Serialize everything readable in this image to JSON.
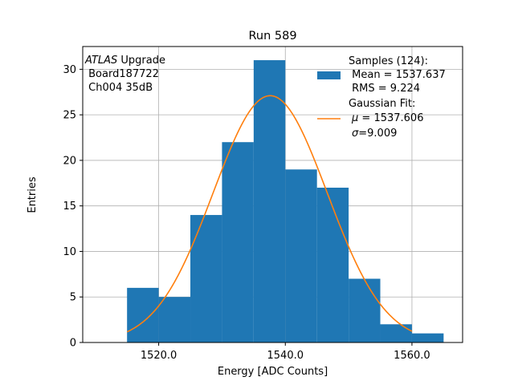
{
  "chart_data": {
    "type": "bar",
    "title": "Run 589",
    "xlabel": "Energy [ADC Counts]",
    "ylabel": "Entries",
    "xlim": [
      1508,
      1568
    ],
    "ylim": [
      0,
      32.5
    ],
    "grid": true,
    "x_ticks": [
      1520,
      1540,
      1560
    ],
    "x_tick_labels": [
      "1520.0",
      "1540.0",
      "1560.0"
    ],
    "y_ticks": [
      0,
      5,
      10,
      15,
      20,
      25,
      30
    ],
    "y_tick_labels": [
      "0",
      "5",
      "10",
      "15",
      "20",
      "25",
      "30"
    ],
    "bin_edges": [
      1515,
      1520,
      1525,
      1530,
      1535,
      1540,
      1545,
      1550,
      1555,
      1560,
      1565
    ],
    "values": [
      6,
      5,
      14,
      22,
      31,
      19,
      17,
      7,
      2,
      1
    ],
    "bar_color": "#1f77b4",
    "fit": {
      "mu": 1537.606,
      "sigma": 9.009,
      "amplitude": 27.1,
      "x_range": [
        1515,
        1560
      ],
      "color": "#ff7f0e"
    },
    "annotation": {
      "italic": "ATLAS",
      "line1_rest": " Upgrade",
      "line2": " Board187722",
      "line3": " Ch004 35dB"
    },
    "legend": {
      "position": "top-right",
      "samples": {
        "line1": "Samples (124):",
        "line2": " Mean = 1537.637",
        "line3": " RMS = 9.224"
      },
      "fit": {
        "line1": "Gaussian Fit:",
        "mu_symbol": "μ",
        "mu_rest": " = 1537.606",
        "sigma_symbol": "σ",
        "sigma_rest": "=9.009"
      }
    }
  }
}
